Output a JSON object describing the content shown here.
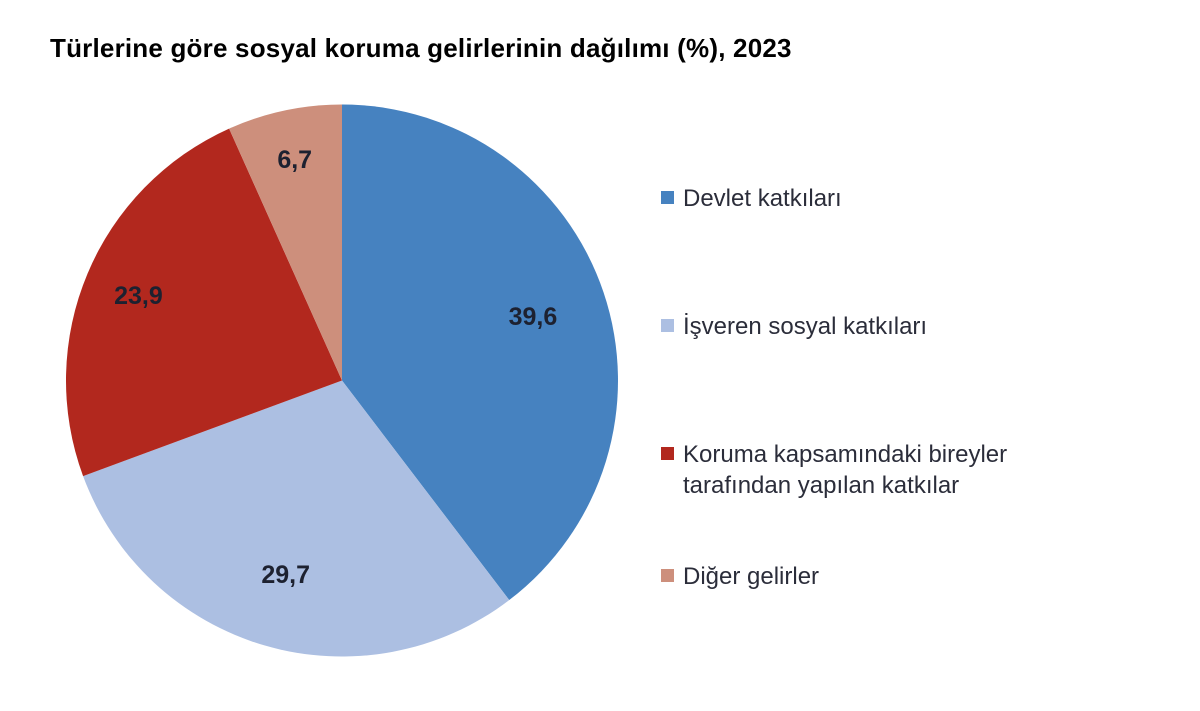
{
  "chart_data": {
    "type": "pie",
    "title": "Türlerine göre sosyal koruma gelirlerinin dağılımı (%), 2023",
    "unit": "%",
    "categories": [
      "Devlet katkıları",
      "İşveren sosyal katkıları",
      "Koruma kapsamındaki bireyler tarafından yapılan katkılar",
      "Diğer gelirler"
    ],
    "values": [
      39.6,
      29.7,
      23.9,
      6.7
    ],
    "value_labels": [
      "39,6",
      "29,7",
      "23,9",
      "6,7"
    ],
    "colors": [
      "#4682c0",
      "#acbfe2",
      "#b2281e",
      "#cd8f7c"
    ],
    "start_angle_deg": 0,
    "direction": "clockwise",
    "legend_position": "right",
    "label_color": "#1d2130",
    "label_radius_factors": [
      0.73,
      0.73,
      0.8,
      0.82
    ]
  }
}
